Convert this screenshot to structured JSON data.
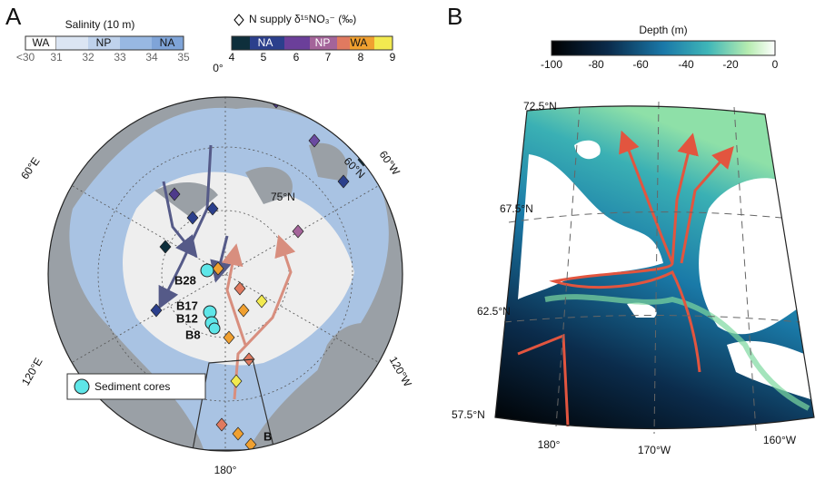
{
  "panel_a": {
    "label": "A",
    "salinity_legend": {
      "title": "Salinity (10 m)",
      "bands": [
        "WA",
        "NP",
        "NA"
      ],
      "ticks": [
        "<30",
        "31",
        "32",
        "33",
        "34",
        "35"
      ]
    },
    "nitrate_legend": {
      "title": "N supply δ¹⁵NO₃⁻ (‰)",
      "bands": [
        "NA",
        "NP",
        "WA"
      ],
      "ticks": [
        "4",
        "5",
        "6",
        "7",
        "8",
        "9"
      ]
    },
    "map_labels": {
      "top": "0°",
      "left": "60°E",
      "right": "60°W",
      "lat75": "75°N",
      "lat60": "60°N",
      "lower_left": "120°E",
      "lower_right": "120°W",
      "bottom": "180°"
    },
    "cores": [
      "B28",
      "B17",
      "B12",
      "B8"
    ],
    "inset_label": "B",
    "legend_item": "Sediment cores"
  },
  "panel_b": {
    "label": "B",
    "depth_legend": {
      "title": "Depth (m)",
      "ticks": [
        "-100",
        "-80",
        "-60",
        "-40",
        "-20",
        "0"
      ]
    },
    "lat_labels": [
      "72.5°N",
      "67.5°N",
      "62.5°N",
      "57.5°N"
    ],
    "lon_labels": [
      "180°",
      "170°W",
      "160°W"
    ]
  }
}
